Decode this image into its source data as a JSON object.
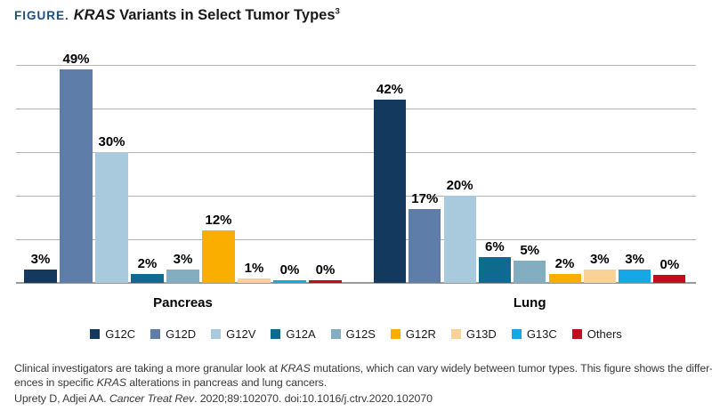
{
  "header": {
    "kicker": "FIGURE.",
    "title_italic": "KRAS",
    "title_rest": " Variants in Select Tumor Types",
    "superscript": "3"
  },
  "chart_data": {
    "type": "bar",
    "title": "KRAS Variants in Select Tumor Types",
    "xlabel": "",
    "ylabel": "",
    "ylim": [
      0,
      50
    ],
    "grid_step": 10,
    "grid": true,
    "legend_position": "bottom",
    "value_suffix": "%",
    "series": [
      {
        "name": "G12C",
        "color": "#13395e"
      },
      {
        "name": "G12D",
        "color": "#5e7da9"
      },
      {
        "name": "G12V",
        "color": "#a9c9dd"
      },
      {
        "name": "G12A",
        "color": "#0e6a8f"
      },
      {
        "name": "G12S",
        "color": "#83aec2"
      },
      {
        "name": "G12R",
        "color": "#faaf00"
      },
      {
        "name": "G13D",
        "color": "#fad298"
      },
      {
        "name": "G13C",
        "color": "#14a9e6"
      },
      {
        "name": "Others",
        "color": "#c00e1e"
      }
    ],
    "groups": [
      {
        "label": "Pancreas",
        "values": [
          3,
          49,
          30,
          2,
          3,
          12,
          1,
          0,
          0
        ],
        "labels": [
          "3%",
          "49%",
          "30%",
          "2%",
          "3%",
          "12%",
          "1%",
          "0%",
          "0%"
        ],
        "display_values": [
          3,
          49,
          30,
          2,
          3,
          12,
          1,
          0.55,
          0.55
        ]
      },
      {
        "label": "Lung",
        "values": [
          42,
          17,
          20,
          6,
          5,
          2,
          3,
          3,
          0
        ],
        "labels": [
          "42%",
          "17%",
          "20%",
          "6%",
          "5%",
          "2%",
          "3%",
          "3%",
          "0%"
        ],
        "display_values": [
          42,
          17,
          20,
          6,
          5,
          2,
          3,
          3,
          1.8
        ]
      }
    ]
  },
  "caption": {
    "lines": [
      [
        {
          "t": "Clinical investigators are taking a more granular look at "
        },
        {
          "t": "KRAS",
          "i": true
        },
        {
          "t": " mutations, which can vary widely between tumor types. This figure shows the differ-"
        }
      ],
      [
        {
          "t": "ences in specific "
        },
        {
          "t": "KRAS",
          "i": true
        },
        {
          "t": " alterations in pancreas and lung cancers."
        }
      ]
    ]
  },
  "reference": {
    "segments": [
      {
        "t": "Uprety D, Adjei AA. "
      },
      {
        "t": "Cancer Treat Rev",
        "i": true
      },
      {
        "t": ". 2020;89:102070. doi:10.1016/j.ctrv.2020.102070"
      }
    ]
  },
  "colors": {
    "kicker_navy": "#1c4e7e",
    "gridline": "#b4b4b4",
    "axis": "#9a9a9a",
    "caption_text": "#3a3a3a"
  }
}
